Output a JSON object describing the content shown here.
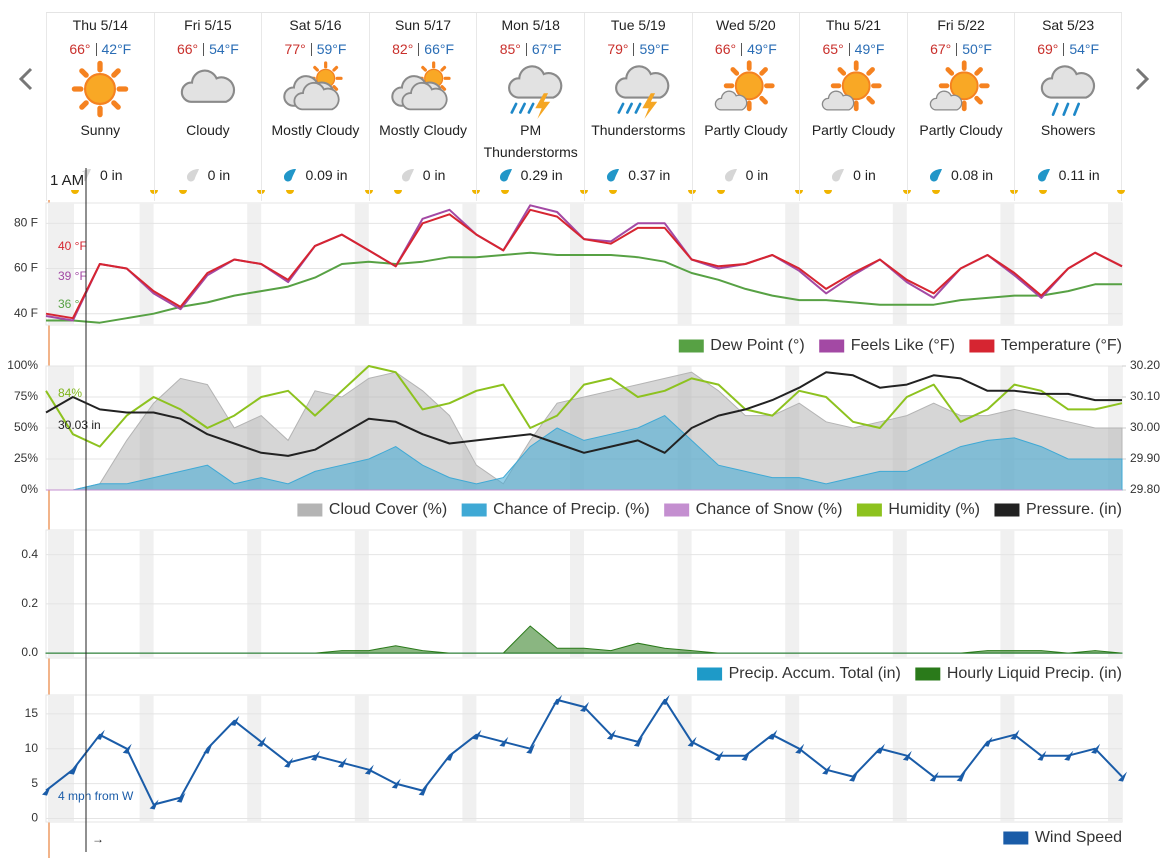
{
  "days": [
    {
      "date": "Thu 5/14",
      "high": "66°",
      "low": "42°F",
      "condition": "Sunny",
      "precip": "0 in"
    },
    {
      "date": "Fri 5/15",
      "high": "66°",
      "low": "54°F",
      "condition": "Cloudy",
      "precip": "0 in"
    },
    {
      "date": "Sat 5/16",
      "high": "77°",
      "low": "59°F",
      "condition": "Mostly Cloudy",
      "precip": "0.09 in"
    },
    {
      "date": "Sun 5/17",
      "high": "82°",
      "low": "66°F",
      "condition": "Mostly Cloudy",
      "precip": "0 in"
    },
    {
      "date": "Mon 5/18",
      "high": "85°",
      "low": "67°F",
      "condition": "PM Thunderstorms",
      "precip": "0.29 in"
    },
    {
      "date": "Tue 5/19",
      "high": "79°",
      "low": "59°F",
      "condition": "Thunderstorms",
      "precip": "0.37 in"
    },
    {
      "date": "Wed 5/20",
      "high": "66°",
      "low": "49°F",
      "condition": "Partly Cloudy",
      "precip": "0 in"
    },
    {
      "date": "Thu 5/21",
      "high": "65°",
      "low": "49°F",
      "condition": "Partly Cloudy",
      "precip": "0 in"
    },
    {
      "date": "Fri 5/22",
      "high": "67°",
      "low": "50°F",
      "condition": "Partly Cloudy",
      "precip": "0.08 in"
    },
    {
      "date": "Sat 5/23",
      "high": "69°",
      "low": "54°F",
      "condition": "Showers",
      "precip": "0.11 in"
    }
  ],
  "cursor_label": "1 AM",
  "chart_data": [
    {
      "type": "line",
      "ylim": [
        35,
        89
      ],
      "yticks": [
        {
          "value": 40,
          "label": "40 F"
        },
        {
          "value": 60,
          "label": "60 F"
        },
        {
          "value": 80,
          "label": "80 F"
        }
      ],
      "grid": true,
      "annotations": [
        {
          "text": "40 °F",
          "color": "#d62531"
        },
        {
          "text": "39 °F",
          "color": "#a349a4"
        },
        {
          "text": "36 °",
          "color": "#57a144"
        }
      ],
      "series": [
        {
          "name": "Dew Point (°)",
          "color": "#57a144",
          "kind": "line",
          "values": [
            37,
            37,
            36,
            38,
            40,
            43,
            45,
            48,
            50,
            52,
            56,
            62,
            63,
            62,
            63,
            65,
            65,
            66,
            67,
            66,
            66,
            66,
            65,
            63,
            58,
            55,
            51,
            48,
            46,
            46,
            45,
            44,
            44,
            44,
            46,
            47,
            48,
            48,
            50,
            53,
            53
          ]
        },
        {
          "name": "Feels Like (°F)",
          "color": "#a349a4",
          "kind": "line",
          "values": [
            39,
            37,
            62,
            60,
            49,
            42,
            57,
            64,
            62,
            54,
            70,
            75,
            68,
            61,
            82,
            86,
            75,
            68,
            88,
            85,
            73,
            72,
            80,
            80,
            64,
            60,
            62,
            66,
            59,
            49,
            57,
            64,
            54,
            47,
            60,
            66,
            57,
            47,
            60,
            67,
            61
          ]
        },
        {
          "name": "Temperature (°F)",
          "color": "#d62531",
          "kind": "line",
          "values": [
            40,
            38,
            62,
            60,
            50,
            43,
            58,
            64,
            62,
            55,
            70,
            75,
            68,
            61,
            80,
            84,
            75,
            68,
            86,
            83,
            73,
            71,
            78,
            78,
            64,
            61,
            62,
            66,
            60,
            51,
            58,
            64,
            55,
            49,
            60,
            66,
            58,
            48,
            60,
            67,
            61
          ]
        }
      ]
    },
    {
      "type": "line",
      "ylim": [
        0,
        100
      ],
      "yticks": [
        {
          "value": 0,
          "label": "0%"
        },
        {
          "value": 25,
          "label": "25%"
        },
        {
          "value": 50,
          "label": "50%"
        },
        {
          "value": 75,
          "label": "75%"
        },
        {
          "value": 100,
          "label": "100%"
        }
      ],
      "y2lim": [
        29.8,
        30.2
      ],
      "y2ticks": [
        {
          "value": 29.8,
          "label": "29.80"
        },
        {
          "value": 29.9,
          "label": "29.90"
        },
        {
          "value": 30.0,
          "label": "30.00"
        },
        {
          "value": 30.1,
          "label": "30.10"
        },
        {
          "value": 30.2,
          "label": "30.20"
        }
      ],
      "grid": true,
      "annotations": [
        {
          "text": "84%",
          "color": "#7fb51a"
        },
        {
          "text": "30.03 in",
          "color": "#222222"
        }
      ],
      "series": [
        {
          "name": "Cloud Cover (%)",
          "color": "#b4b4b4",
          "kind": "area",
          "values": [
            0,
            0,
            5,
            40,
            70,
            90,
            85,
            50,
            60,
            40,
            80,
            75,
            90,
            95,
            80,
            60,
            20,
            5,
            40,
            70,
            75,
            80,
            85,
            90,
            95,
            80,
            60,
            60,
            70,
            55,
            50,
            55,
            60,
            70,
            60,
            60,
            65,
            60,
            55,
            50,
            50
          ]
        },
        {
          "name": "Chance of Precip. (%)",
          "color": "#3fa9d5",
          "kind": "area",
          "values": [
            0,
            0,
            5,
            5,
            10,
            15,
            20,
            5,
            10,
            5,
            15,
            20,
            25,
            35,
            20,
            10,
            5,
            10,
            35,
            50,
            40,
            45,
            50,
            60,
            40,
            20,
            15,
            10,
            10,
            5,
            10,
            15,
            15,
            25,
            35,
            40,
            42,
            35,
            25,
            25,
            25
          ]
        },
        {
          "name": "Chance of Snow (%)",
          "color": "#c48fd0",
          "kind": "area",
          "values": [
            0,
            0,
            0,
            0,
            0,
            0,
            0,
            0,
            0,
            0,
            0,
            0,
            0,
            0,
            0,
            0,
            0,
            0,
            0,
            0,
            0,
            0,
            0,
            0,
            0,
            0,
            0,
            0,
            0,
            0,
            0,
            0,
            0,
            0,
            0,
            0,
            0,
            0,
            0,
            0,
            0
          ]
        },
        {
          "name": "Humidity (%)",
          "color": "#8dc21f",
          "kind": "line",
          "values": [
            80,
            45,
            35,
            60,
            75,
            65,
            50,
            60,
            75,
            80,
            60,
            80,
            100,
            95,
            65,
            70,
            80,
            85,
            50,
            60,
            85,
            90,
            75,
            80,
            90,
            85,
            65,
            60,
            80,
            75,
            55,
            50,
            75,
            85,
            55,
            65,
            85,
            80,
            65,
            65,
            70
          ]
        },
        {
          "name": "Pressure. (in)",
          "color": "#222222",
          "kind": "line",
          "axis": "y2",
          "values": [
            30.05,
            30.1,
            30.06,
            30.05,
            30.05,
            30.03,
            29.98,
            29.95,
            29.92,
            29.91,
            29.93,
            29.98,
            30.03,
            30.02,
            29.98,
            29.95,
            29.96,
            29.97,
            29.98,
            29.95,
            29.92,
            29.94,
            29.96,
            29.92,
            30.0,
            30.04,
            30.06,
            30.09,
            30.13,
            30.18,
            30.17,
            30.13,
            30.14,
            30.17,
            30.16,
            30.12,
            30.12,
            30.11,
            30.11,
            30.09,
            30.09
          ]
        }
      ]
    },
    {
      "type": "line",
      "ylim": [
        -0.02,
        0.5
      ],
      "yticks": [
        {
          "value": 0,
          "label": "0.0"
        },
        0.2,
        0.4
      ],
      "grid": true,
      "annotations": [],
      "series": [
        {
          "name": "Precip. Accum. Total (in)",
          "color": "#1e9ac8",
          "kind": "area",
          "values": [
            0,
            0,
            0,
            0,
            0,
            0,
            0,
            0,
            0,
            0,
            0,
            0,
            0,
            0,
            0,
            0,
            0,
            0,
            0,
            0,
            0,
            0,
            0,
            0,
            0,
            0,
            0,
            0,
            0,
            0,
            0,
            0,
            0,
            0,
            0,
            0,
            0,
            0,
            0,
            0,
            0
          ]
        },
        {
          "name": "Hourly Liquid Precip. (in)",
          "color": "#2a7a1a",
          "kind": "area",
          "values": [
            0,
            0,
            0,
            0,
            0,
            0,
            0,
            0,
            0,
            0,
            0,
            0.01,
            0.01,
            0.03,
            0.01,
            0,
            0,
            0,
            0.11,
            0.02,
            0.02,
            0.01,
            0.04,
            0.02,
            0.01,
            0,
            0,
            0,
            0,
            0,
            0,
            0,
            0,
            0,
            0,
            0.01,
            0.01,
            0.01,
            0,
            0.01,
            0
          ]
        }
      ]
    },
    {
      "type": "line",
      "ylim": [
        -0.5,
        17.7
      ],
      "yticks": [
        0,
        5,
        10,
        15
      ],
      "grid": true,
      "annotations": [
        {
          "text": "4 mph from W",
          "color": "#1a5ca8"
        },
        {
          "text": "→",
          "color": "#222222"
        }
      ],
      "series": [
        {
          "name": "Wind Speed",
          "color": "#1a5ca8",
          "kind": "line",
          "markers": true,
          "values": [
            4,
            7,
            12,
            10,
            2,
            3,
            10,
            14,
            11,
            8,
            9,
            8,
            7,
            5,
            4,
            9,
            12,
            11,
            10,
            17,
            16,
            12,
            11,
            17,
            11,
            9,
            9,
            12,
            10,
            7,
            6,
            10,
            9,
            6,
            6,
            11,
            12,
            9,
            9,
            10,
            6
          ]
        }
      ]
    }
  ]
}
